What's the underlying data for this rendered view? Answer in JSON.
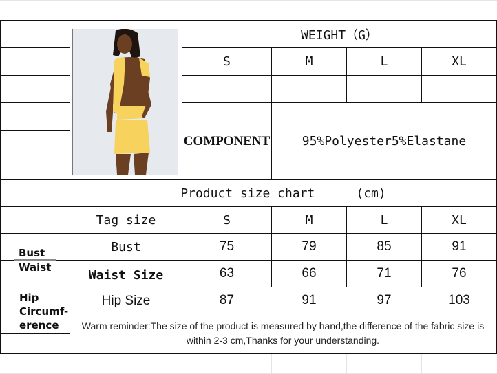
{
  "weight_header": "WEIGHT（G）",
  "weight_sizes": [
    "S",
    "M",
    "L",
    "XL"
  ],
  "component_label": "COMPONENT",
  "component_value": "95%Polyester5%Elastane",
  "chart_title": "Product size chart",
  "chart_unit": "(cm)",
  "tag_size_label": "Tag size",
  "sizes": [
    "S",
    "M",
    "L",
    "XL"
  ],
  "rows": [
    {
      "label": "Bust",
      "values": [
        "75",
        "79",
        "85",
        "91"
      ]
    },
    {
      "label": "Waist Size",
      "values": [
        "63",
        "66",
        "71",
        "76"
      ]
    },
    {
      "label": "Hip Size",
      "values": [
        "87",
        "91",
        "97",
        "103"
      ]
    }
  ],
  "side_labels": {
    "bust": "Bust",
    "waist": "Waist",
    "hip": "Hip",
    "circumference_1": "Circumf-",
    "circumference_2": "erence"
  },
  "note": "Warm reminder:The size of the product is measured by hand,the difference of the fabric size is within 2-3 cm,Thanks for your understanding.",
  "colors": {
    "dress": "#f7d25c",
    "photo_bg": "#e6eaee",
    "skin": "#6b3f22"
  }
}
